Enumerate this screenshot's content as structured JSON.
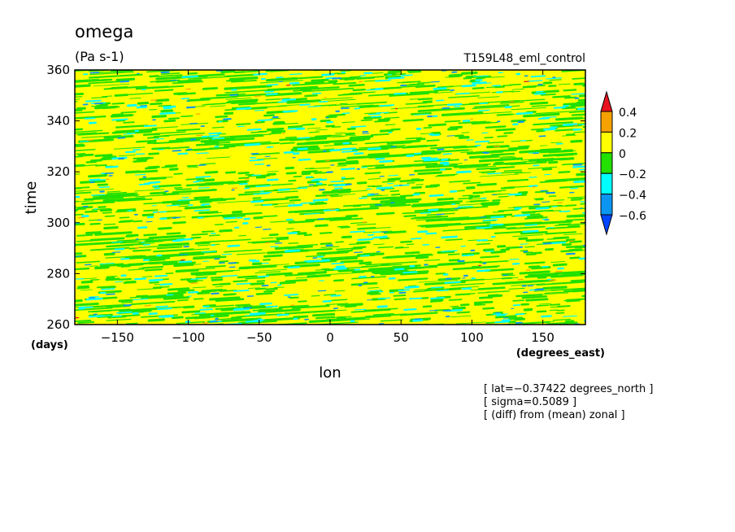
{
  "chart_data": {
    "type": "heatmap",
    "title": "omega",
    "units": "(Pa s-1)",
    "run_name": "T159L48_eml_control",
    "xlabel": "lon",
    "ylabel": "time",
    "x_units": "(degrees_east)",
    "y_units": "(days)",
    "xlim": [
      -180,
      180
    ],
    "ylim": [
      260,
      360
    ],
    "x_ticks": [
      -150,
      -100,
      -50,
      0,
      50,
      100,
      150
    ],
    "x_tick_labels": [
      "−150",
      "−100",
      "−50",
      "0",
      "50",
      "100",
      "150"
    ],
    "y_ticks": [
      260,
      280,
      300,
      320,
      340,
      360
    ],
    "y_tick_labels": [
      "260",
      "280",
      "300",
      "320",
      "340",
      "360"
    ],
    "colorbar": {
      "levels": [
        0.4,
        0.2,
        0,
        -0.2,
        -0.4,
        -0.6
      ],
      "labels": [
        "0.4",
        "0.2",
        "0",
        "−0.2",
        "−0.4",
        "−0.6"
      ],
      "colors": [
        "#e8141e",
        "#f5a200",
        "#ffff00",
        "#22e000",
        "#00ffff",
        "#0a96f0",
        "#0046ff"
      ]
    },
    "notes": [
      "[ lat=−0.37422 degrees_north ]",
      "[ sigma=0.5089 ]",
      "[ (diff) from (mean) zonal ]"
    ],
    "grid": false
  }
}
